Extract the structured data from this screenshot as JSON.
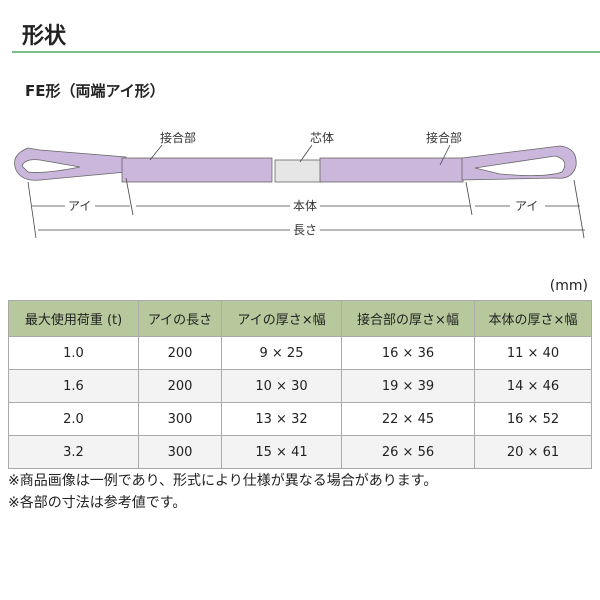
{
  "title": "形状",
  "subtitle": "FE形（両端アイ形）",
  "diagram": {
    "label_joint_left": "接合部",
    "label_core": "芯体",
    "label_joint_right": "接合部",
    "label_eye_left": "アイ",
    "label_body": "本体",
    "label_eye_right": "アイ",
    "label_length": "長さ",
    "sling_color": "#cbb6dc"
  },
  "unit": "(mm)",
  "table": {
    "headers": [
      "最大使用荷重 (t)",
      "アイの長さ",
      "アイの厚さ×幅",
      "接合部の厚さ×幅",
      "本体の厚さ×幅"
    ],
    "rows": [
      [
        "1.0",
        "200",
        "9 × 25",
        "16 × 36",
        "11 × 40"
      ],
      [
        "1.6",
        "200",
        "10 × 30",
        "19 × 39",
        "14 × 46"
      ],
      [
        "2.0",
        "300",
        "13 × 32",
        "22 × 45",
        "16 × 52"
      ],
      [
        "3.2",
        "300",
        "15 × 41",
        "26 × 56",
        "20 × 61"
      ]
    ],
    "header_color": "#b7c99c"
  },
  "notes": [
    "※商品画像は一例であり、形式により仕様が異なる場合があります。",
    "※各部の寸法は参考値です。"
  ]
}
